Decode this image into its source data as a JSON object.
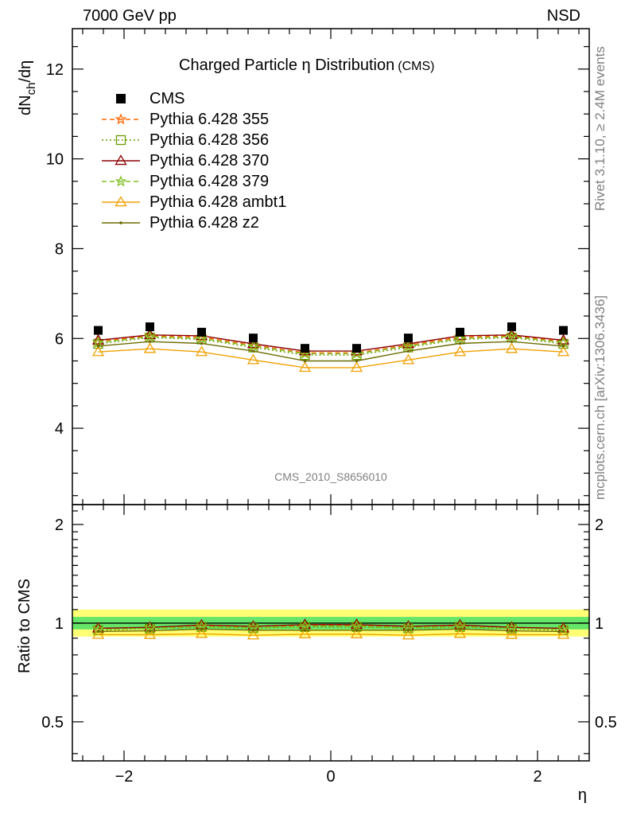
{
  "header": {
    "left": "7000 GeV pp",
    "right": "NSD"
  },
  "side_text": {
    "top": "Rivet 3.1.10, ≥ 2.4M events",
    "bottom": "mcplots.cern.ch [arXiv:1306.3436]"
  },
  "chart_data": {
    "type": "line",
    "title": "Charged Particle η Distribution",
    "title_suffix": "(CMS)",
    "watermark": "CMS_2010_S8656010",
    "xlabel": "η",
    "ylabel_main": "dN_ch/dη",
    "ylabel_ratio": "Ratio to CMS",
    "xlim": [
      -2.5,
      2.5
    ],
    "ylim_main": [
      2.3,
      12.9
    ],
    "ylim_ratio": [
      0.38,
      2.3
    ],
    "ratio_scale": "log",
    "x_ticks": [
      "−2",
      "0",
      "2"
    ],
    "y_ticks_main": [
      "4",
      "6",
      "8",
      "10",
      "12"
    ],
    "y_ticks_ratio": [
      "0.5",
      "1",
      "2"
    ],
    "x": [
      -2.25,
      -1.75,
      -1.25,
      -0.75,
      -0.25,
      0.25,
      0.75,
      1.25,
      1.75,
      2.25
    ],
    "data": {
      "name": "CMS",
      "values": [
        6.18,
        6.26,
        6.14,
        6.01,
        5.78,
        5.78,
        6.01,
        6.14,
        6.26,
        6.18
      ],
      "color": "#000000"
    },
    "series": [
      {
        "name": "Pythia 6.428 355",
        "color": "#ff6600",
        "dash": "6,4",
        "marker": "star",
        "values": [
          5.93,
          6.06,
          6.03,
          5.85,
          5.68,
          5.68,
          5.85,
          6.03,
          6.06,
          5.93
        ]
      },
      {
        "name": "Pythia 6.428 356",
        "color": "#6b9b00",
        "dash": "2,3",
        "marker": "square",
        "values": [
          5.88,
          6.02,
          5.98,
          5.8,
          5.63,
          5.63,
          5.8,
          5.98,
          6.02,
          5.88
        ]
      },
      {
        "name": "Pythia 6.428 370",
        "color": "#8b0000",
        "dash": "",
        "marker": "triangle",
        "values": [
          5.96,
          6.08,
          6.06,
          5.88,
          5.72,
          5.72,
          5.88,
          6.06,
          6.08,
          5.96
        ]
      },
      {
        "name": "Pythia 6.428 379",
        "color": "#7fbf1f",
        "dash": "6,4",
        "marker": "star",
        "values": [
          5.91,
          6.04,
          6.0,
          5.83,
          5.66,
          5.66,
          5.83,
          6.0,
          6.04,
          5.91
        ]
      },
      {
        "name": "Pythia 6.428 ambt1",
        "color": "#f0a000",
        "dash": "",
        "marker": "triangle-open",
        "values": [
          5.7,
          5.77,
          5.7,
          5.52,
          5.35,
          5.35,
          5.52,
          5.7,
          5.77,
          5.7
        ]
      },
      {
        "name": "Pythia 6.428 z2",
        "color": "#6b6b00",
        "dash": "",
        "marker": "dot",
        "values": [
          5.83,
          5.93,
          5.89,
          5.72,
          5.5,
          5.5,
          5.72,
          5.89,
          5.93,
          5.83
        ]
      }
    ],
    "bands": {
      "stat_color": "#33dd66",
      "total_color": "#ffff66"
    }
  }
}
